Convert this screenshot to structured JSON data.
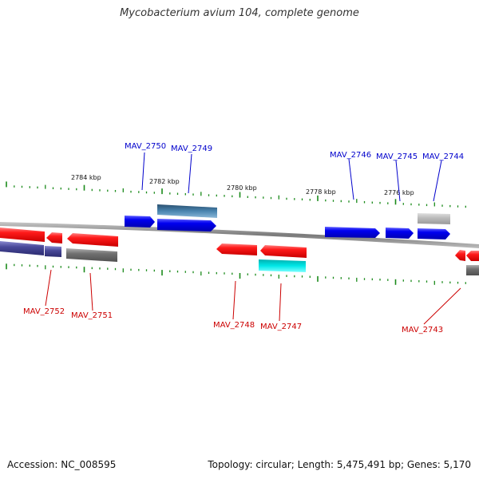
{
  "title": "Mycobacterium avium 104, complete genome",
  "footer": {
    "accession": "Accession: NC_008595",
    "summary": "Topology: circular; Length: 5,475,491 bp; Genes: 5,170"
  },
  "colors": {
    "forward": "#0000ee",
    "reverse": "#ee0000",
    "forward_label": "#0000cc",
    "reverse_label": "#cc0000",
    "tick": "#1a8a1a",
    "backbone": "#888888"
  },
  "scale_labels": [
    "2784 kbp",
    "2782 kbp",
    "2780 kbp",
    "2778 kbp",
    "2776 kbp"
  ],
  "genes_forward": [
    "MAV_2750",
    "MAV_2749",
    "MAV_2746",
    "MAV_2745",
    "MAV_2744"
  ],
  "genes_reverse": [
    "MAV_2752",
    "MAV_2751",
    "MAV_2748",
    "MAV_2747",
    "MAV_2743"
  ]
}
